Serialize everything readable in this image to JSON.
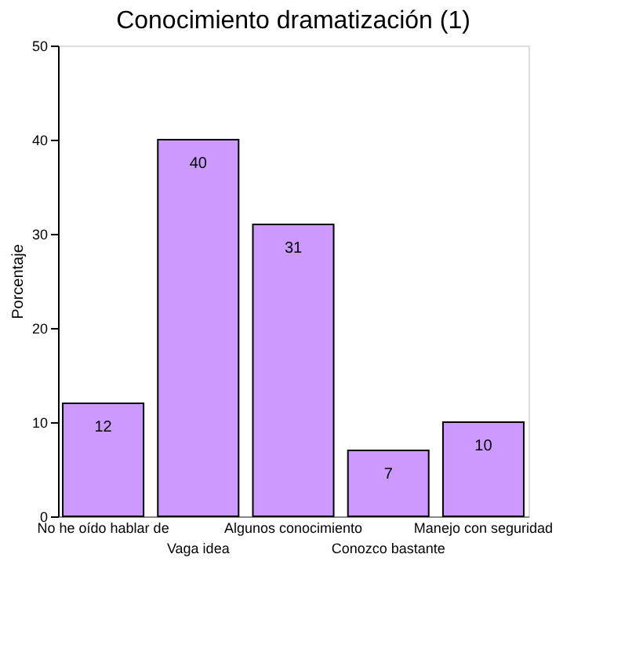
{
  "chart_data": {
    "type": "bar",
    "title": "Conocimiento dramatización (1)",
    "ylabel": "Porcentaje",
    "categories": [
      "No he oído hablar de",
      "Vaga idea",
      "Algunos conocimiento",
      "Conozco bastante",
      "Manejo con seguridad"
    ],
    "values": [
      12,
      40,
      31,
      7,
      10
    ],
    "color": "#cc99ff",
    "data_labels": true,
    "ylim": [
      0,
      50
    ],
    "yticks": [
      0,
      10,
      20,
      30,
      40,
      50
    ],
    "grid": false
  }
}
